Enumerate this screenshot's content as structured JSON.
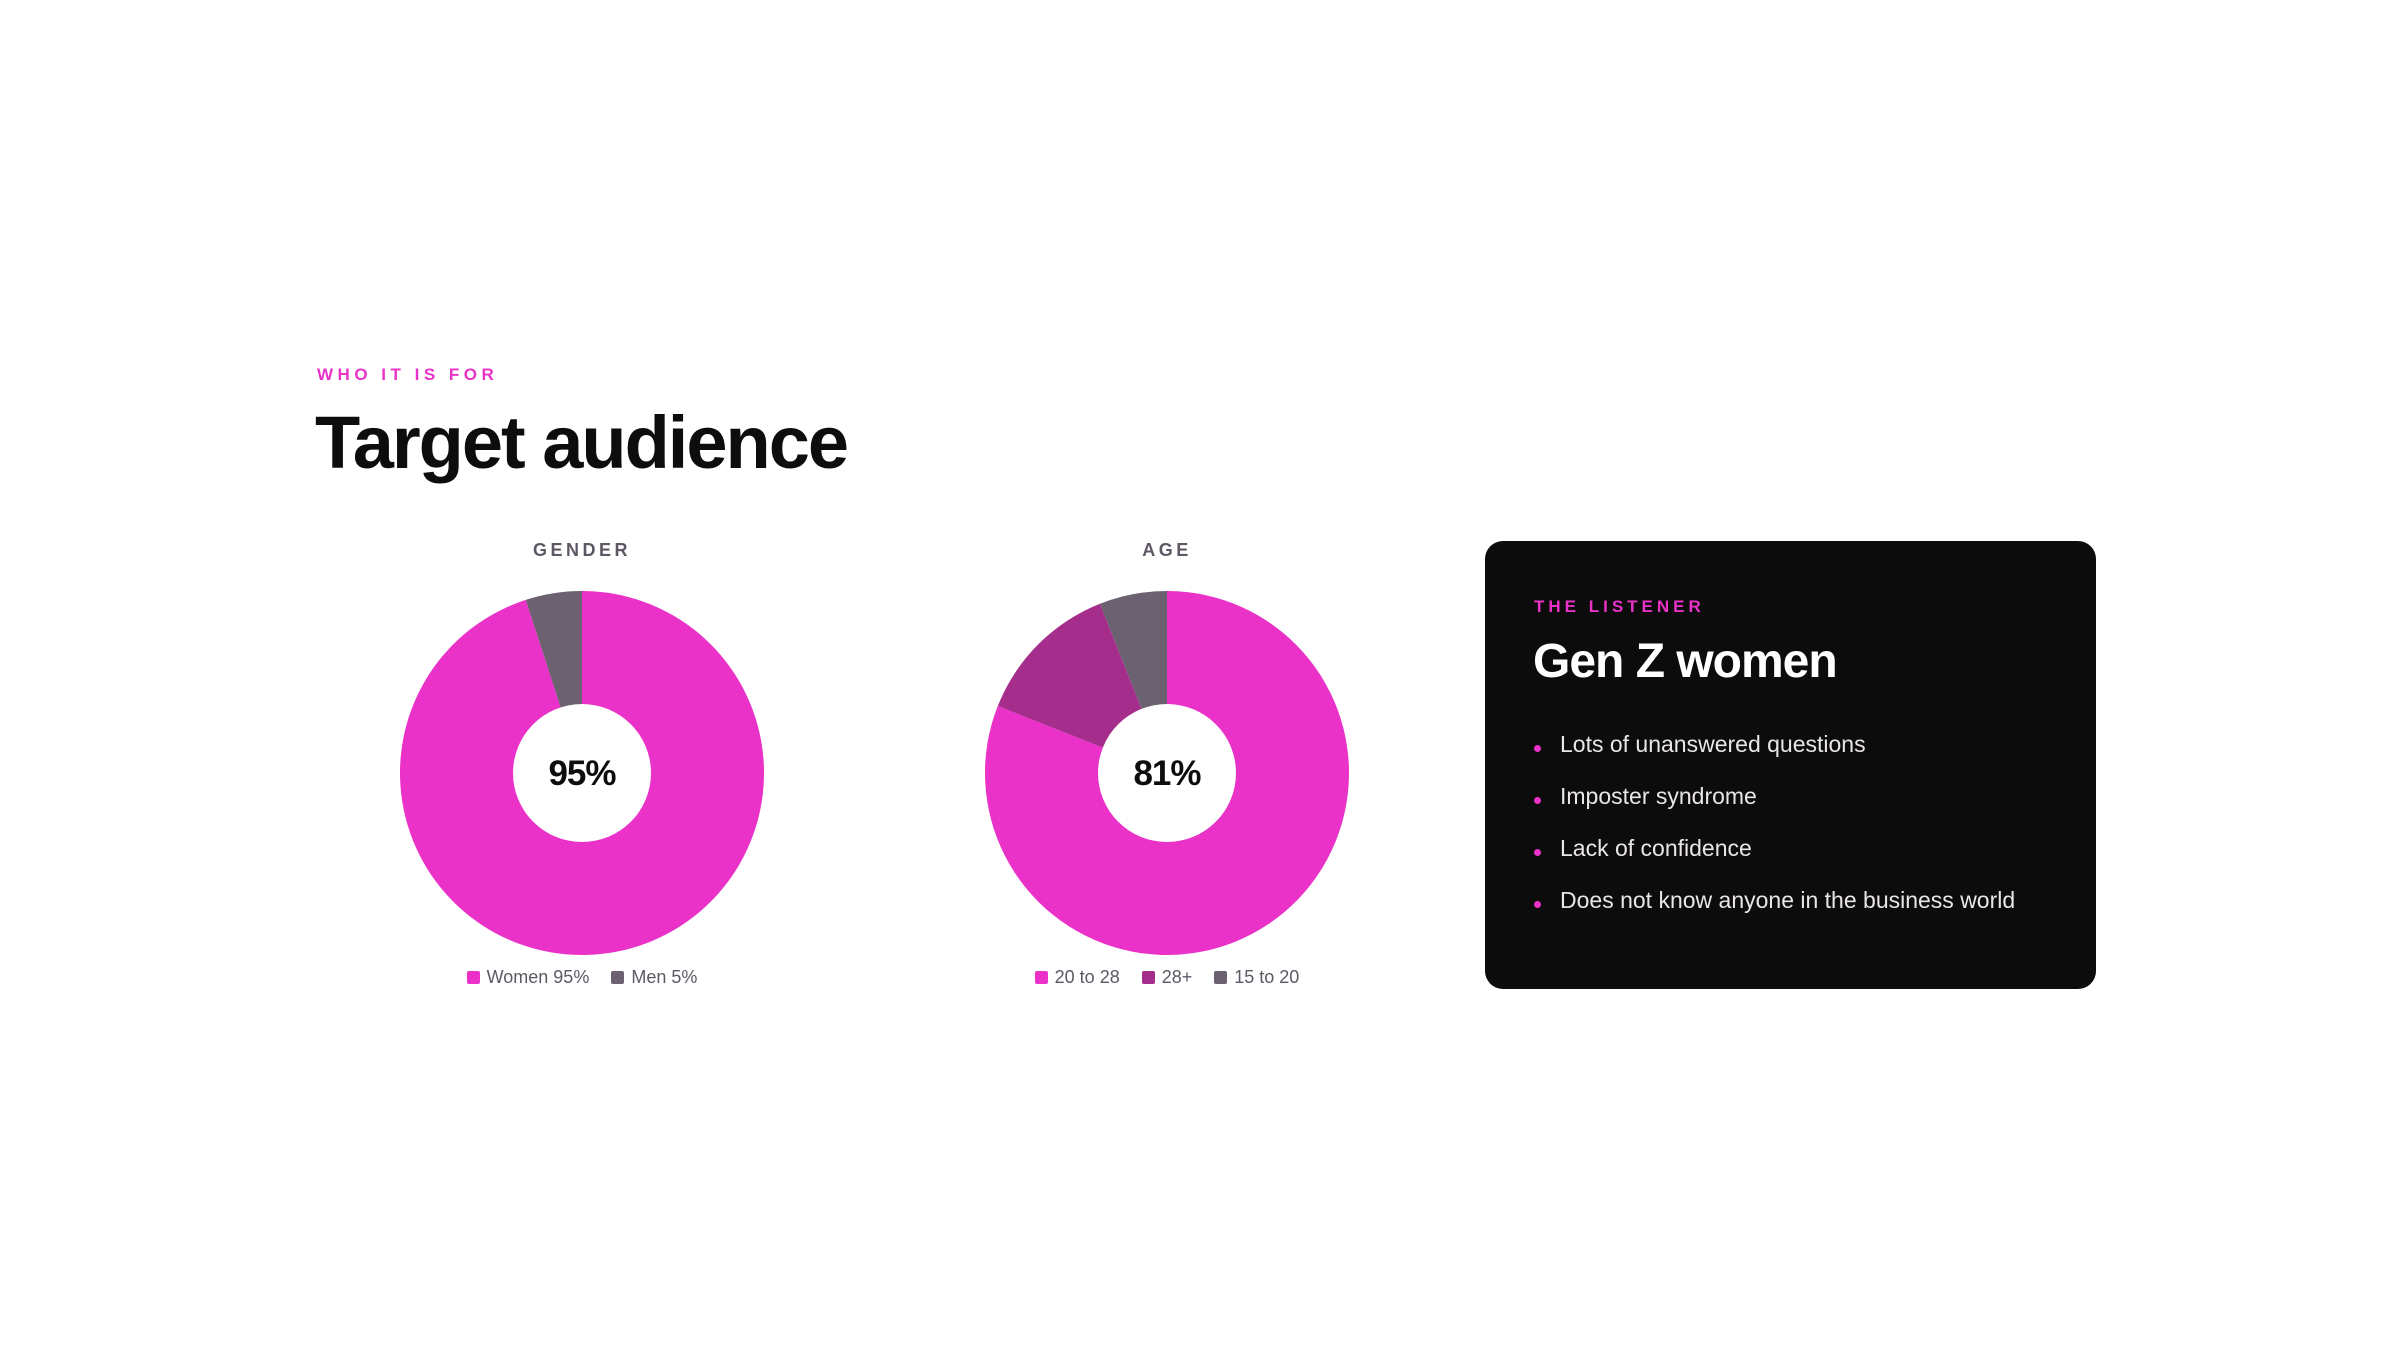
{
  "header": {
    "eyebrow": "WHO IT IS FOR",
    "title": "Target audience"
  },
  "colors": {
    "pink": "#ea31c8",
    "purple": "#a52d8c",
    "gray": "#6b6170",
    "card_bg": "#0d0c0c"
  },
  "chart_data": [
    {
      "type": "pie",
      "title": "GENDER",
      "center_label": "95%",
      "categories": [
        "Women 95%",
        "Men 5%"
      ],
      "values": [
        95,
        5
      ],
      "colors": [
        "#ea31c8",
        "#6b6170"
      ],
      "legend": "bottom"
    },
    {
      "type": "pie",
      "title": "AGE",
      "center_label": "81%",
      "categories": [
        "20 to 28",
        "28+",
        "15 to 20"
      ],
      "values": [
        81,
        13,
        6
      ],
      "colors": [
        "#ea31c8",
        "#a52d8c",
        "#6b6170"
      ],
      "legend": "bottom"
    }
  ],
  "card": {
    "eyebrow": "THE LISTENER",
    "title": "Gen Z women",
    "bullets": [
      "Lots of unanswered questions",
      "Imposter syndrome",
      "Lack of confidence",
      "Does not know anyone in the business world"
    ]
  }
}
